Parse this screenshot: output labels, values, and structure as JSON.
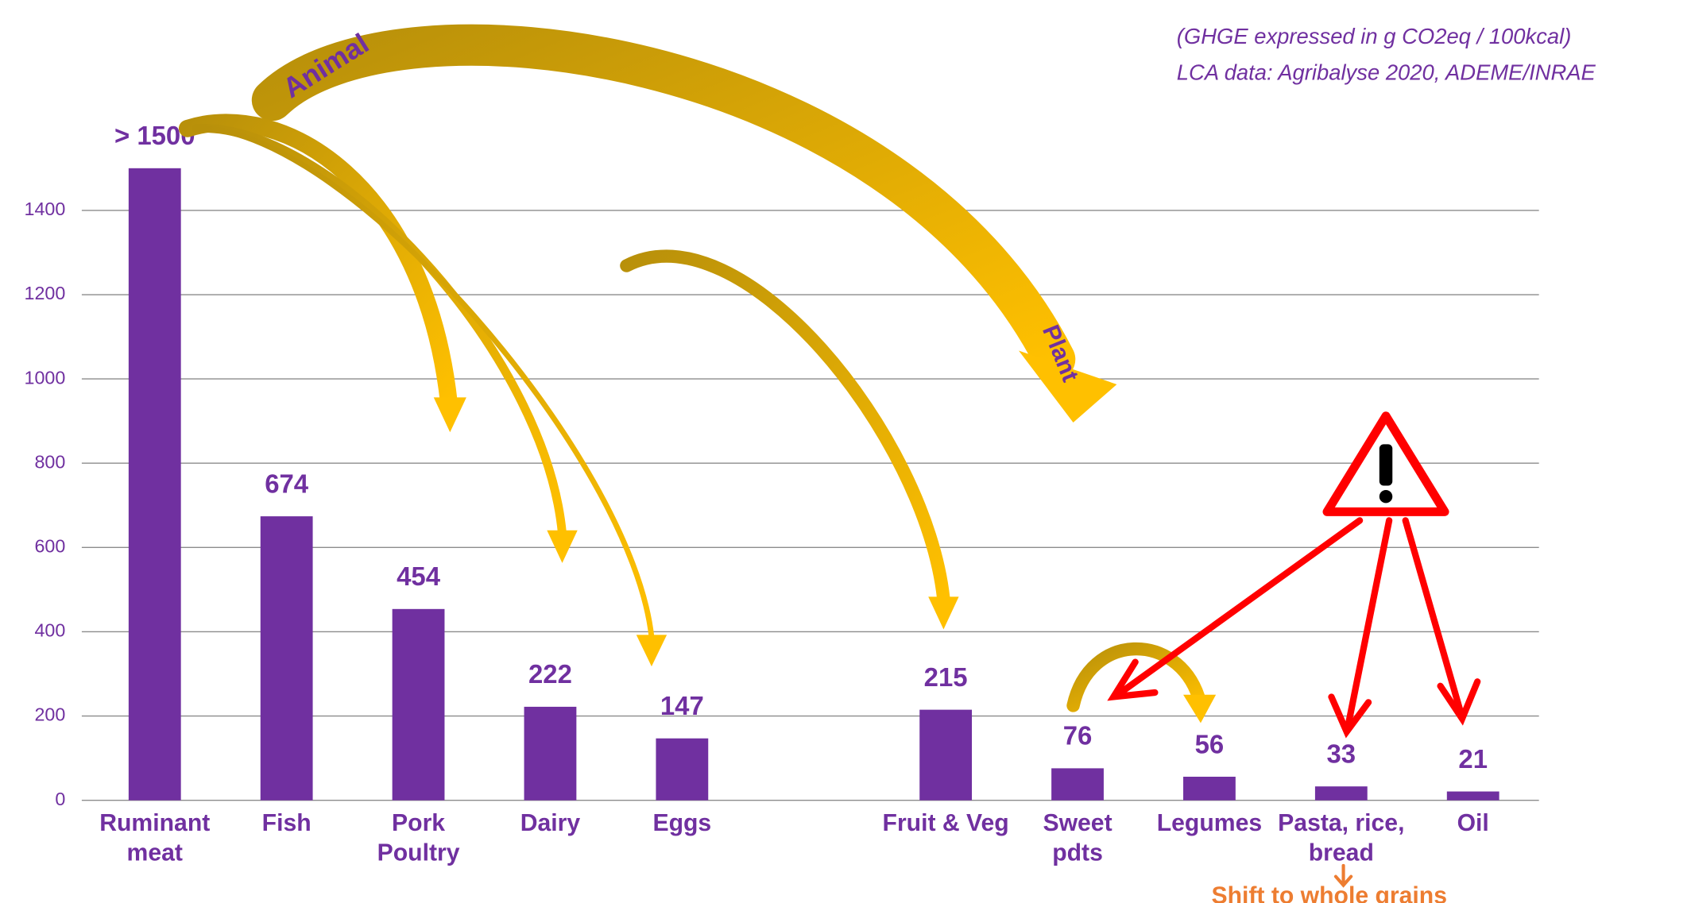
{
  "chart_data": {
    "type": "bar",
    "categories": [
      "Ruminant\nmeat",
      "Fish",
      "Pork\nPoultry",
      "Dairy",
      "Eggs",
      null,
      "Fruit & Veg",
      "Sweet\npdts",
      "Legumes",
      "Pasta, rice,\nbread",
      "Oil"
    ],
    "values": [
      1500,
      674,
      454,
      222,
      147,
      null,
      215,
      76,
      56,
      33,
      21
    ],
    "value_labels": [
      "> 1500",
      "674",
      "454",
      "222",
      "147",
      null,
      "215",
      "76",
      "56",
      "33",
      "21"
    ],
    "color": "#7030a0",
    "ylim": [
      0,
      1500
    ],
    "yticks": [
      0,
      200,
      400,
      600,
      800,
      1000,
      1200,
      1400
    ],
    "grid": true,
    "annotations": {
      "note_units": "(GHGE expressed in g CO2eq / 100kcal)",
      "note_source": "LCA data: Agribalyse 2020, ADEME/INRAE",
      "animal": "Animal",
      "plant": "Plant",
      "shift": "Shift to whole grains"
    }
  }
}
